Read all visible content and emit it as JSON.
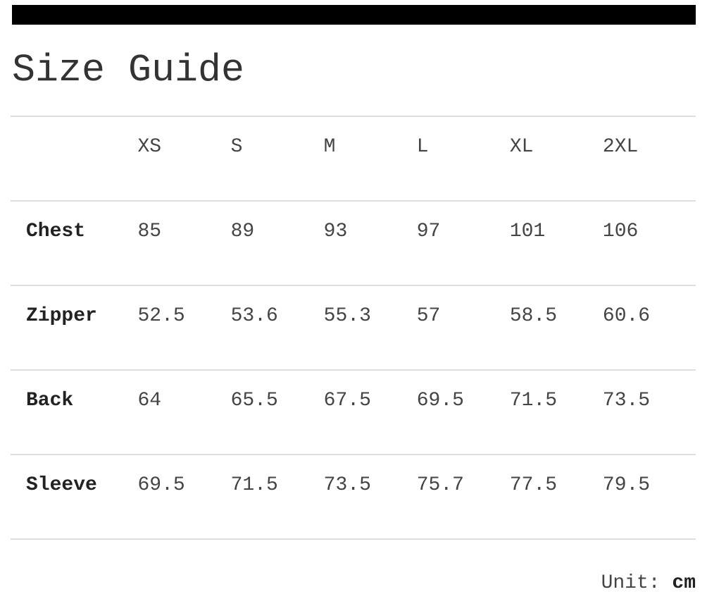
{
  "title": "Size Guide",
  "sizes": [
    "XS",
    "S",
    "M",
    "L",
    "XL",
    "2XL"
  ],
  "rows": [
    {
      "label": "Chest",
      "values": [
        "85",
        "89",
        "93",
        "97",
        "101",
        "106"
      ]
    },
    {
      "label": "Zipper",
      "values": [
        "52.5",
        "53.6",
        "55.3",
        "57",
        "58.5",
        "60.6"
      ]
    },
    {
      "label": "Back",
      "values": [
        "64",
        "65.5",
        "67.5",
        "69.5",
        "71.5",
        "73.5"
      ]
    },
    {
      "label": "Sleeve",
      "values": [
        "69.5",
        "71.5",
        "73.5",
        "75.7",
        "77.5",
        "79.5"
      ]
    }
  ],
  "unit": {
    "label": "Unit:",
    "value": "cm"
  }
}
